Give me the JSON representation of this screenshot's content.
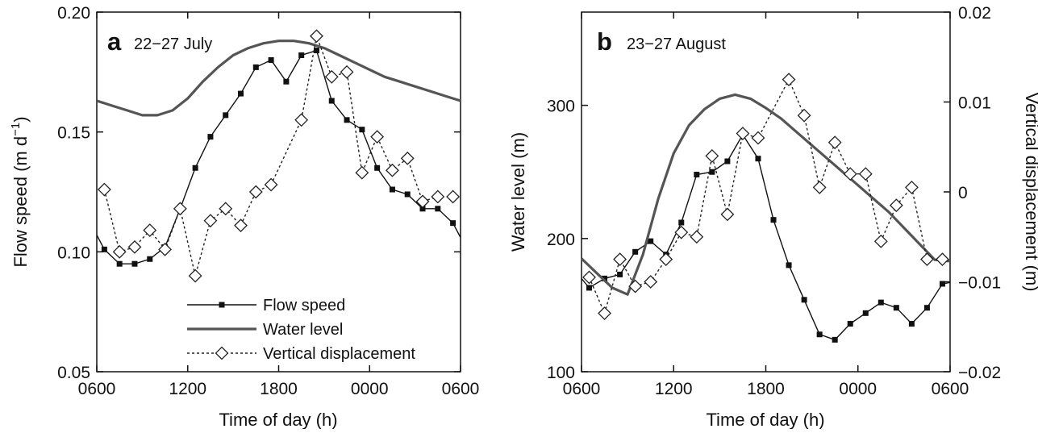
{
  "colors": {
    "flow_speed": "#111111",
    "water_level": "#555555",
    "vertical_displacement": "#222222",
    "axes": "#111111",
    "background": "#ffffff"
  },
  "chart_data": [
    {
      "type": "line",
      "panel_label": "a",
      "title": "22−27 July",
      "xlabel": "Time of day (h)",
      "ylabel": "Flow speed (m d⁻¹)",
      "xticks": [
        "0600",
        "1200",
        "1800",
        "0000",
        "0600"
      ],
      "xlim": [
        6,
        30
      ],
      "ylim": [
        0.05,
        0.2
      ],
      "yticks": [
        "0.05",
        "0.10",
        "0.15",
        "0.20"
      ],
      "legend_position": "lower-center",
      "series": [
        {
          "name": "Flow speed",
          "marker": "square",
          "style": "solid",
          "x": [
            6,
            6.5,
            7.5,
            8.5,
            9.5,
            10.5,
            11.5,
            12.5,
            13.5,
            14.5,
            15.5,
            16.5,
            17.5,
            18.5,
            19.5,
            20.5,
            21.5,
            22.5,
            23.5,
            24.5,
            25.5,
            26.5,
            27.5,
            28.5,
            29.5,
            30
          ],
          "values": [
            0.107,
            0.101,
            0.095,
            0.095,
            0.097,
            0.102,
            0.118,
            0.135,
            0.148,
            0.157,
            0.166,
            0.177,
            0.18,
            0.171,
            0.182,
            0.184,
            0.163,
            0.155,
            0.151,
            0.135,
            0.126,
            0.124,
            0.118,
            0.118,
            0.112,
            0.106
          ]
        },
        {
          "name": "Water level",
          "marker": "none",
          "style": "solid-thick",
          "x": [
            6,
            7,
            8,
            9,
            10,
            11,
            12,
            13,
            14,
            15,
            16,
            17,
            18,
            19,
            20,
            21,
            22,
            23,
            24,
            25,
            26,
            27,
            28,
            29,
            30
          ],
          "values": [
            0.163,
            0.161,
            0.159,
            0.157,
            0.157,
            0.159,
            0.164,
            0.171,
            0.177,
            0.182,
            0.185,
            0.187,
            0.188,
            0.188,
            0.187,
            0.185,
            0.182,
            0.179,
            0.176,
            0.173,
            0.171,
            0.169,
            0.167,
            0.165,
            0.163
          ]
        },
        {
          "name": "Vertical displacement",
          "marker": "diamond",
          "style": "dotted",
          "x": [
            6.5,
            7.5,
            8.5,
            9.5,
            10.5,
            11.5,
            12.5,
            13.5,
            14.5,
            15.5,
            16.5,
            17.5,
            19.5,
            20.5,
            21.5,
            22.5,
            23.5,
            24.5,
            25.5,
            26.5,
            27.5,
            28.5,
            29.5
          ],
          "values": [
            0.126,
            0.1,
            0.102,
            0.109,
            0.101,
            0.118,
            0.09,
            0.113,
            0.118,
            0.111,
            0.125,
            0.128,
            0.155,
            0.19,
            0.173,
            0.175,
            0.133,
            0.148,
            0.134,
            0.139,
            0.121,
            0.123,
            0.123
          ]
        }
      ]
    },
    {
      "type": "line",
      "panel_label": "b",
      "title": "23−27 August",
      "xlabel": "Time of day (h)",
      "ylabel": "Water level (m)",
      "y2label": "Vertical displacement (m)",
      "xticks": [
        "0600",
        "1200",
        "1800",
        "0000",
        "0600"
      ],
      "xlim": [
        6,
        30
      ],
      "ylim": [
        100,
        370
      ],
      "yticks": [
        "100",
        "200",
        "300"
      ],
      "y2lim": [
        -0.02,
        0.02
      ],
      "y2ticks": [
        "−0.02",
        "−0.01",
        "0",
        "0.01",
        "0.02"
      ],
      "series": [
        {
          "name": "Flow speed",
          "marker": "square",
          "style": "solid",
          "x": [
            6,
            6.5,
            7.5,
            8.5,
            9.5,
            10.5,
            11.5,
            12.5,
            13.5,
            14.5,
            15.5,
            16.5,
            17.5,
            18.5,
            19.5,
            20.5,
            21.5,
            22.5,
            23.5,
            24.5,
            25.5,
            26.5,
            27.5,
            28.5,
            29.5,
            30
          ],
          "values": [
            170,
            163,
            170,
            173,
            190,
            198,
            188,
            212,
            248,
            250,
            258,
            278,
            260,
            214,
            180,
            154,
            128,
            124,
            136,
            144,
            152,
            148,
            136,
            148,
            166,
            167
          ]
        },
        {
          "name": "Water level",
          "marker": "none",
          "style": "solid-thick",
          "x": [
            6,
            7,
            8,
            9,
            10,
            11,
            12,
            13,
            14,
            15,
            16,
            17,
            18,
            19,
            20,
            21,
            22,
            23,
            24,
            25,
            26,
            27,
            28,
            29,
            30
          ],
          "values": [
            185,
            174,
            163,
            158,
            188,
            230,
            264,
            285,
            297,
            305,
            308,
            305,
            298,
            290,
            280,
            270,
            260,
            250,
            240,
            230,
            220,
            208,
            196,
            184,
            183
          ]
        },
        {
          "name": "Vertical displacement",
          "marker": "diamond",
          "style": "dotted",
          "axis": "right",
          "x": [
            6.5,
            7.5,
            8.5,
            9.5,
            10.5,
            11.5,
            12.5,
            13.5,
            14.5,
            15.5,
            16.5,
            17.5,
            19.5,
            20.5,
            21.5,
            22.5,
            23.5,
            24.5,
            25.5,
            26.5,
            27.5,
            28.5,
            29.5
          ],
          "values": [
            -0.0095,
            -0.0135,
            -0.0075,
            -0.0105,
            -0.01,
            -0.0075,
            -0.0045,
            -0.005,
            0.004,
            -0.0025,
            0.0065,
            0.006,
            0.0125,
            0.0085,
            0.0005,
            0.0055,
            0.002,
            0.002,
            -0.0055,
            -0.0015,
            0.0005,
            -0.0075,
            -0.0075
          ]
        }
      ]
    }
  ]
}
